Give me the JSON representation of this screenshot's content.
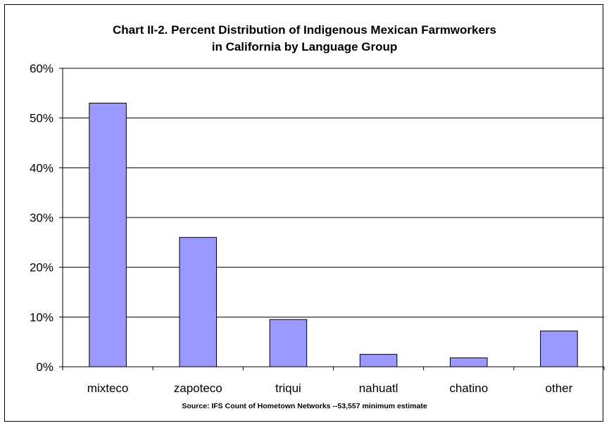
{
  "chart_data": {
    "type": "bar",
    "title_line1": "Chart II-2.  Percent Distribution of Indigenous Mexican Farmworkers",
    "title_line2": "in California by Language Group",
    "categories": [
      "mixteco",
      "zapoteco",
      "triqui",
      "nahuatl",
      "chatino",
      "other"
    ],
    "values": [
      53,
      26,
      9.5,
      2.5,
      1.8,
      7.2
    ],
    "ylim": [
      0,
      60
    ],
    "yticks": [
      0,
      10,
      20,
      30,
      40,
      50,
      60
    ],
    "ytick_labels": [
      "0%",
      "10%",
      "20%",
      "30%",
      "40%",
      "50%",
      "60%"
    ],
    "grid": true,
    "bar_color": "#9999ff",
    "source": "Source: IFS Count of Hometown Networks --53,557 minimum estimate"
  }
}
